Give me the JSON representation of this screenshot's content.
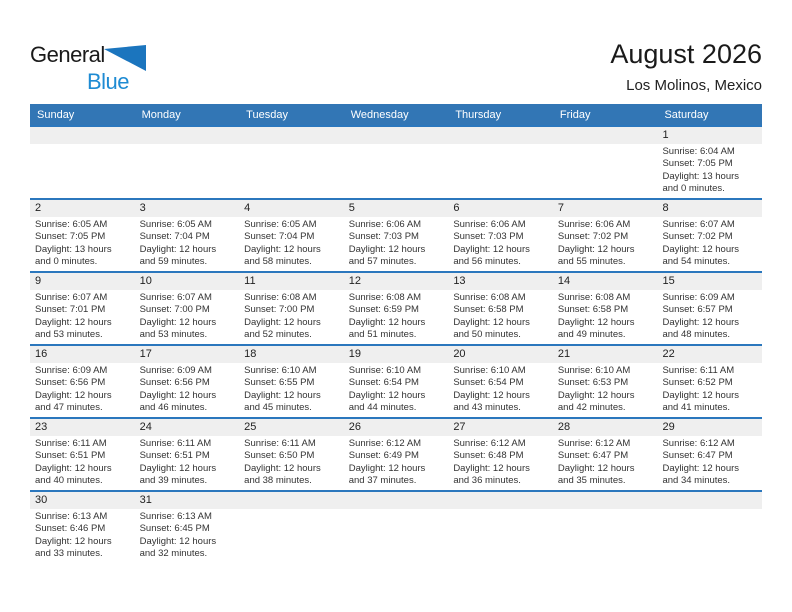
{
  "logo": {
    "text_general": "General",
    "text_blue": "Blue"
  },
  "header": {
    "title": "August 2026",
    "subtitle": "Los Molinos, Mexico"
  },
  "colors": {
    "header_bg": "#3276B5",
    "row_border": "#2B77BD",
    "number_strip_bg": "#EFEFEF",
    "logo_blue": "#1E8BD3",
    "triangle_blue": "#1B75BE"
  },
  "calendar": {
    "weekday_headers": [
      "Sunday",
      "Monday",
      "Tuesday",
      "Wednesday",
      "Thursday",
      "Friday",
      "Saturday"
    ],
    "weeks": [
      [
        null,
        null,
        null,
        null,
        null,
        null,
        {
          "day": "1",
          "sunrise": "Sunrise: 6:04 AM",
          "sunset": "Sunset: 7:05 PM",
          "daylight": "Daylight: 13 hours and 0 minutes."
        }
      ],
      [
        {
          "day": "2",
          "sunrise": "Sunrise: 6:05 AM",
          "sunset": "Sunset: 7:05 PM",
          "daylight": "Daylight: 13 hours and 0 minutes."
        },
        {
          "day": "3",
          "sunrise": "Sunrise: 6:05 AM",
          "sunset": "Sunset: 7:04 PM",
          "daylight": "Daylight: 12 hours and 59 minutes."
        },
        {
          "day": "4",
          "sunrise": "Sunrise: 6:05 AM",
          "sunset": "Sunset: 7:04 PM",
          "daylight": "Daylight: 12 hours and 58 minutes."
        },
        {
          "day": "5",
          "sunrise": "Sunrise: 6:06 AM",
          "sunset": "Sunset: 7:03 PM",
          "daylight": "Daylight: 12 hours and 57 minutes."
        },
        {
          "day": "6",
          "sunrise": "Sunrise: 6:06 AM",
          "sunset": "Sunset: 7:03 PM",
          "daylight": "Daylight: 12 hours and 56 minutes."
        },
        {
          "day": "7",
          "sunrise": "Sunrise: 6:06 AM",
          "sunset": "Sunset: 7:02 PM",
          "daylight": "Daylight: 12 hours and 55 minutes."
        },
        {
          "day": "8",
          "sunrise": "Sunrise: 6:07 AM",
          "sunset": "Sunset: 7:02 PM",
          "daylight": "Daylight: 12 hours and 54 minutes."
        }
      ],
      [
        {
          "day": "9",
          "sunrise": "Sunrise: 6:07 AM",
          "sunset": "Sunset: 7:01 PM",
          "daylight": "Daylight: 12 hours and 53 minutes."
        },
        {
          "day": "10",
          "sunrise": "Sunrise: 6:07 AM",
          "sunset": "Sunset: 7:00 PM",
          "daylight": "Daylight: 12 hours and 53 minutes."
        },
        {
          "day": "11",
          "sunrise": "Sunrise: 6:08 AM",
          "sunset": "Sunset: 7:00 PM",
          "daylight": "Daylight: 12 hours and 52 minutes."
        },
        {
          "day": "12",
          "sunrise": "Sunrise: 6:08 AM",
          "sunset": "Sunset: 6:59 PM",
          "daylight": "Daylight: 12 hours and 51 minutes."
        },
        {
          "day": "13",
          "sunrise": "Sunrise: 6:08 AM",
          "sunset": "Sunset: 6:58 PM",
          "daylight": "Daylight: 12 hours and 50 minutes."
        },
        {
          "day": "14",
          "sunrise": "Sunrise: 6:08 AM",
          "sunset": "Sunset: 6:58 PM",
          "daylight": "Daylight: 12 hours and 49 minutes."
        },
        {
          "day": "15",
          "sunrise": "Sunrise: 6:09 AM",
          "sunset": "Sunset: 6:57 PM",
          "daylight": "Daylight: 12 hours and 48 minutes."
        }
      ],
      [
        {
          "day": "16",
          "sunrise": "Sunrise: 6:09 AM",
          "sunset": "Sunset: 6:56 PM",
          "daylight": "Daylight: 12 hours and 47 minutes."
        },
        {
          "day": "17",
          "sunrise": "Sunrise: 6:09 AM",
          "sunset": "Sunset: 6:56 PM",
          "daylight": "Daylight: 12 hours and 46 minutes."
        },
        {
          "day": "18",
          "sunrise": "Sunrise: 6:10 AM",
          "sunset": "Sunset: 6:55 PM",
          "daylight": "Daylight: 12 hours and 45 minutes."
        },
        {
          "day": "19",
          "sunrise": "Sunrise: 6:10 AM",
          "sunset": "Sunset: 6:54 PM",
          "daylight": "Daylight: 12 hours and 44 minutes."
        },
        {
          "day": "20",
          "sunrise": "Sunrise: 6:10 AM",
          "sunset": "Sunset: 6:54 PM",
          "daylight": "Daylight: 12 hours and 43 minutes."
        },
        {
          "day": "21",
          "sunrise": "Sunrise: 6:10 AM",
          "sunset": "Sunset: 6:53 PM",
          "daylight": "Daylight: 12 hours and 42 minutes."
        },
        {
          "day": "22",
          "sunrise": "Sunrise: 6:11 AM",
          "sunset": "Sunset: 6:52 PM",
          "daylight": "Daylight: 12 hours and 41 minutes."
        }
      ],
      [
        {
          "day": "23",
          "sunrise": "Sunrise: 6:11 AM",
          "sunset": "Sunset: 6:51 PM",
          "daylight": "Daylight: 12 hours and 40 minutes."
        },
        {
          "day": "24",
          "sunrise": "Sunrise: 6:11 AM",
          "sunset": "Sunset: 6:51 PM",
          "daylight": "Daylight: 12 hours and 39 minutes."
        },
        {
          "day": "25",
          "sunrise": "Sunrise: 6:11 AM",
          "sunset": "Sunset: 6:50 PM",
          "daylight": "Daylight: 12 hours and 38 minutes."
        },
        {
          "day": "26",
          "sunrise": "Sunrise: 6:12 AM",
          "sunset": "Sunset: 6:49 PM",
          "daylight": "Daylight: 12 hours and 37 minutes."
        },
        {
          "day": "27",
          "sunrise": "Sunrise: 6:12 AM",
          "sunset": "Sunset: 6:48 PM",
          "daylight": "Daylight: 12 hours and 36 minutes."
        },
        {
          "day": "28",
          "sunrise": "Sunrise: 6:12 AM",
          "sunset": "Sunset: 6:47 PM",
          "daylight": "Daylight: 12 hours and 35 minutes."
        },
        {
          "day": "29",
          "sunrise": "Sunrise: 6:12 AM",
          "sunset": "Sunset: 6:47 PM",
          "daylight": "Daylight: 12 hours and 34 minutes."
        }
      ],
      [
        {
          "day": "30",
          "sunrise": "Sunrise: 6:13 AM",
          "sunset": "Sunset: 6:46 PM",
          "daylight": "Daylight: 12 hours and 33 minutes."
        },
        {
          "day": "31",
          "sunrise": "Sunrise: 6:13 AM",
          "sunset": "Sunset: 6:45 PM",
          "daylight": "Daylight: 12 hours and 32 minutes."
        },
        null,
        null,
        null,
        null,
        null
      ]
    ]
  }
}
